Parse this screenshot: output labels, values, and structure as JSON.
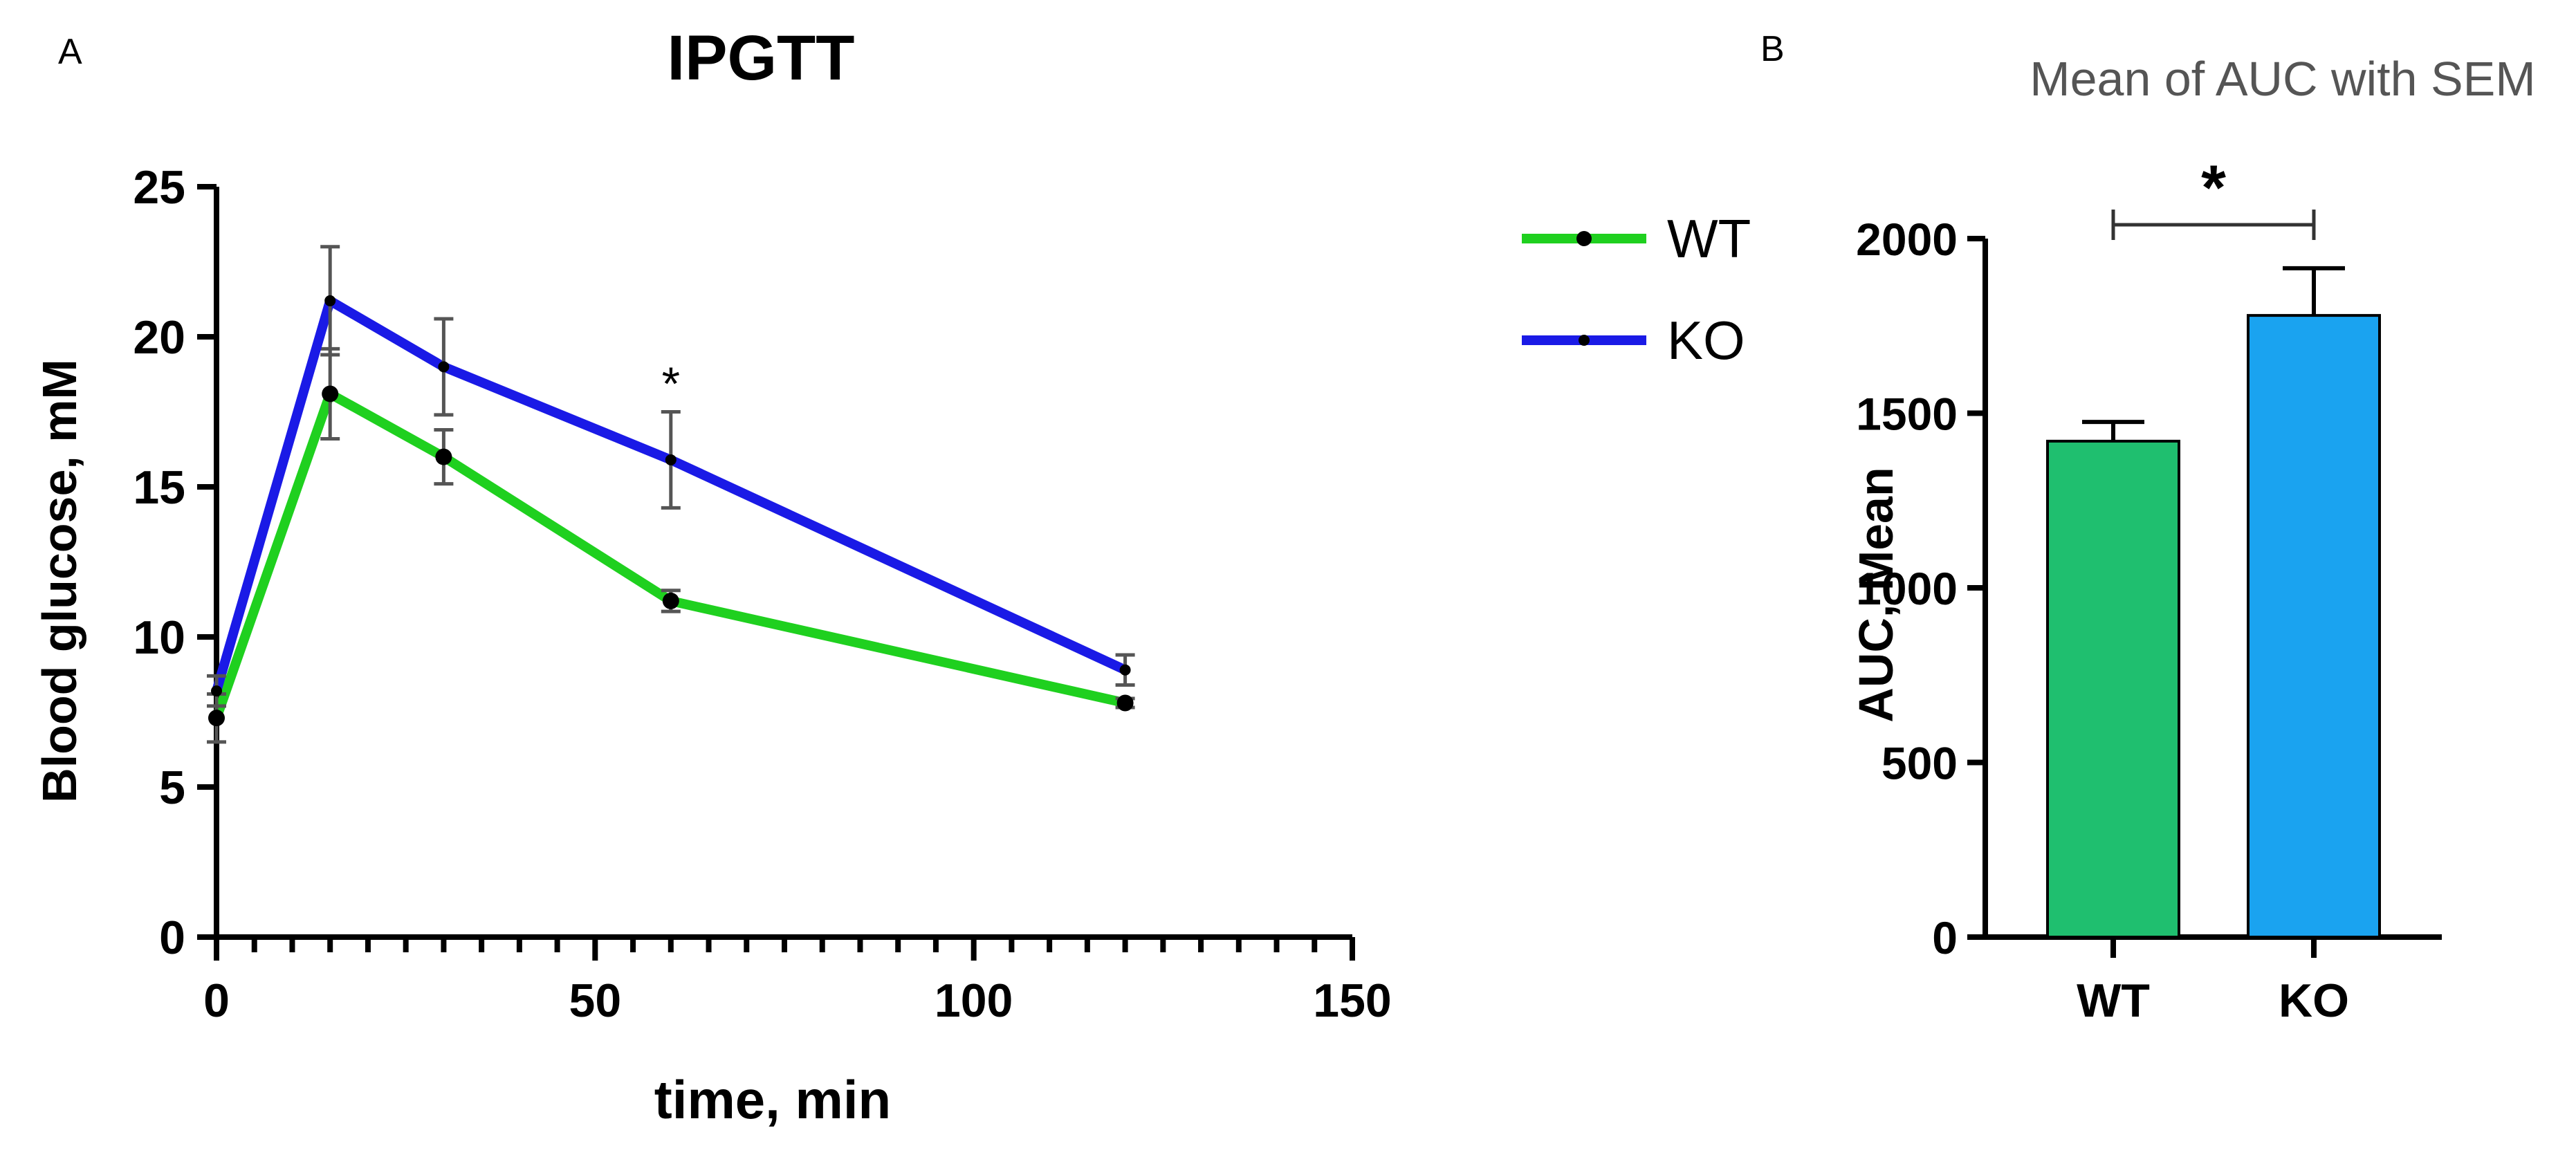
{
  "figure": {
    "panel_a_label": "A",
    "panel_b_label": "B"
  },
  "colors": {
    "wt_line": "#1fd01f",
    "ko_line": "#1a1ae6",
    "wt_bar": "#1fbf6f",
    "ko_bar": "#1aa3f0",
    "axis": "#000000",
    "error": "#555555",
    "title_b": "#555555"
  },
  "chart_data": [
    {
      "type": "line",
      "title": "IPGTT",
      "xlabel": "time, min",
      "ylabel": "Blood glucose, mM",
      "xlim": [
        0,
        150
      ],
      "ylim": [
        0,
        25
      ],
      "x_ticks": [
        0,
        50,
        100,
        150
      ],
      "x_tick_labels": [
        "0",
        "50",
        "100",
        "150"
      ],
      "x_minor_step": 5,
      "y_ticks": [
        0,
        5,
        10,
        15,
        20,
        25
      ],
      "y_tick_labels": [
        "0",
        "5",
        "10",
        "15",
        "20",
        "25"
      ],
      "grid": false,
      "legend_position": "top-right, outside",
      "series": [
        {
          "name": "WT",
          "color_key": "wt_line",
          "x": [
            0,
            15,
            30,
            60,
            120
          ],
          "y": [
            7.3,
            18.1,
            16.0,
            11.2,
            7.8
          ],
          "err": [
            0.8,
            1.5,
            0.9,
            0.35,
            0.15
          ]
        },
        {
          "name": "KO",
          "color_key": "ko_line",
          "x": [
            0,
            15,
            30,
            60,
            120
          ],
          "y": [
            8.2,
            21.2,
            19.0,
            15.9,
            8.9
          ],
          "err": [
            0.5,
            1.8,
            1.6,
            1.6,
            0.5
          ]
        }
      ],
      "annotations": [
        {
          "text": "*",
          "x": 60,
          "y": 18.6
        }
      ]
    },
    {
      "type": "bar",
      "title": "Mean of AUC with SEM",
      "xlabel": "",
      "ylabel": "AUC, Mean",
      "ylim": [
        0,
        2000
      ],
      "y_ticks": [
        0,
        500,
        1000,
        1500,
        2000
      ],
      "y_tick_labels": [
        "0",
        "500",
        "1000",
        "1500",
        "2000"
      ],
      "categories": [
        "WT",
        "KO"
      ],
      "values": [
        1420,
        1780
      ],
      "errors": [
        55,
        135
      ],
      "bar_color_keys": [
        "wt_bar",
        "ko_bar"
      ],
      "significance": {
        "text": "*",
        "between": [
          "WT",
          "KO"
        ]
      }
    }
  ]
}
